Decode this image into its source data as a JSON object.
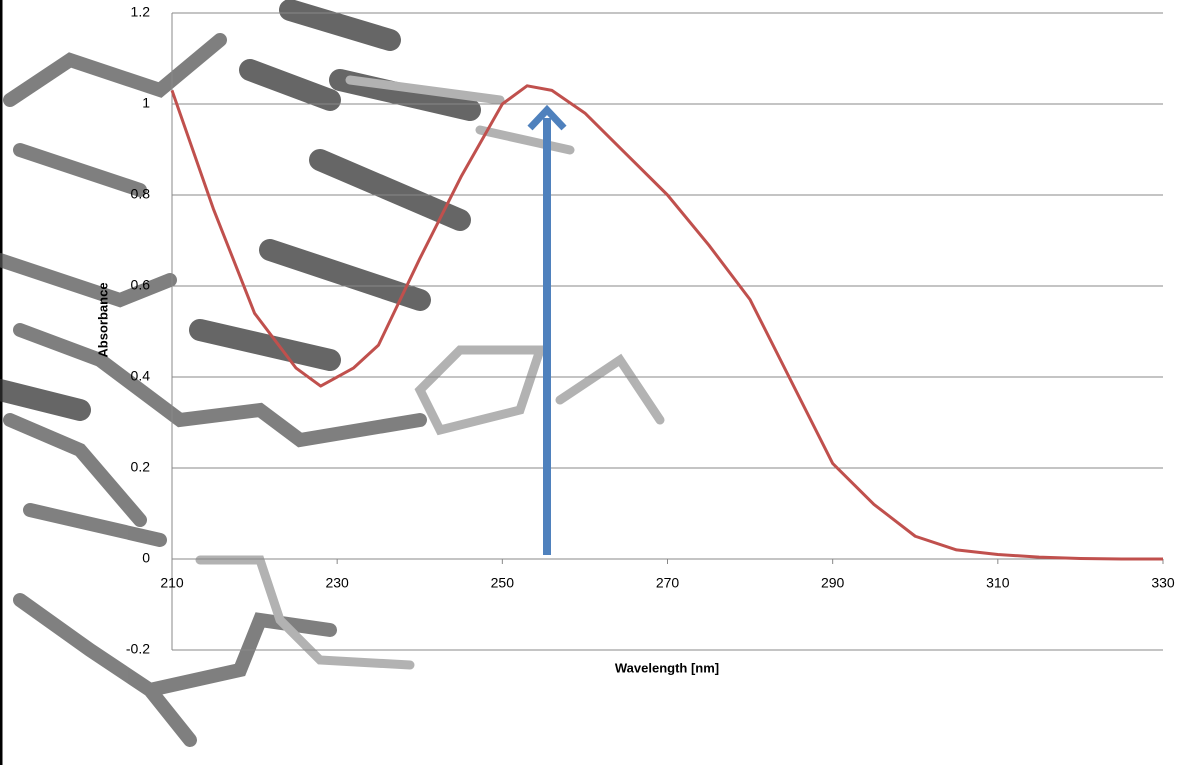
{
  "chart_data": {
    "type": "line",
    "x_label": "Wavelength [nm]",
    "y_label": "Absorbance",
    "x": [
      210,
      215,
      220,
      225,
      228,
      232,
      235,
      240,
      245,
      250,
      253,
      256,
      260,
      265,
      270,
      275,
      280,
      285,
      290,
      295,
      300,
      305,
      310,
      315,
      320,
      325,
      330
    ],
    "series": [
      {
        "name": "Absorbance",
        "color": "#c0504d",
        "values": [
          1.03,
          0.77,
          0.54,
          0.42,
          0.38,
          0.42,
          0.47,
          0.66,
          0.84,
          1.0,
          1.04,
          1.03,
          0.98,
          0.89,
          0.8,
          0.69,
          0.57,
          0.39,
          0.21,
          0.12,
          0.05,
          0.02,
          0.01,
          0.004,
          0.001,
          0,
          0
        ]
      }
    ],
    "xlim": [
      210,
      330
    ],
    "ylim": [
      -0.2,
      1.2
    ],
    "xticks": [
      210,
      230,
      250,
      270,
      290,
      310,
      330
    ],
    "yticks": [
      -0.2,
      0,
      0.2,
      0.4,
      0.6,
      0.8,
      1,
      1.2
    ],
    "grid": true
  }
}
